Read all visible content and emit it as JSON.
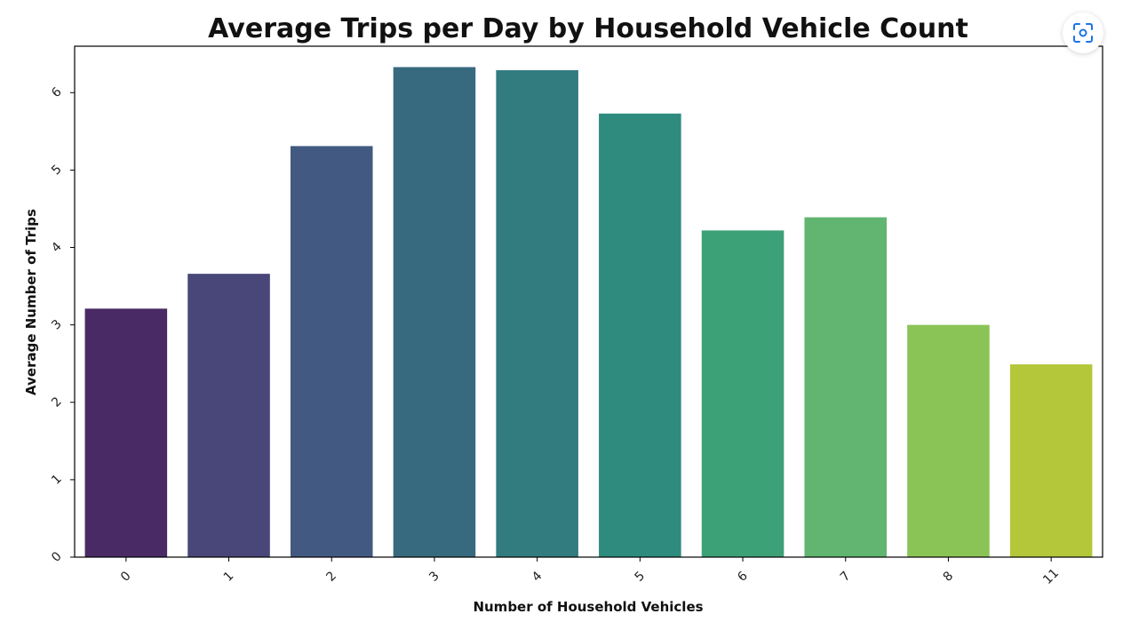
{
  "chart_data": {
    "type": "bar",
    "title": "Average Trips per Day by Household Vehicle Count",
    "xlabel": "Number of Household Vehicles",
    "ylabel": "Average Number of Trips",
    "categories": [
      "0",
      "1",
      "2",
      "3",
      "4",
      "5",
      "6",
      "7",
      "8",
      "11"
    ],
    "values": [
      3.21,
      3.66,
      5.31,
      6.33,
      6.29,
      5.73,
      4.22,
      4.39,
      3.0,
      2.49
    ],
    "bar_colors": [
      "#4a2a64",
      "#494679",
      "#425a81",
      "#386a7f",
      "#327c80",
      "#2e8b7d",
      "#3da178",
      "#61b570",
      "#8bc456",
      "#b4c73a"
    ],
    "ylim": [
      0,
      6.6
    ],
    "yticks": [
      0,
      1,
      2,
      3,
      4,
      5,
      6
    ],
    "grid": false,
    "legend": false,
    "tick_rotation": 45
  },
  "ui": {
    "lens_icon": "lens-search-icon",
    "lens_color": "#1a73e8"
  }
}
